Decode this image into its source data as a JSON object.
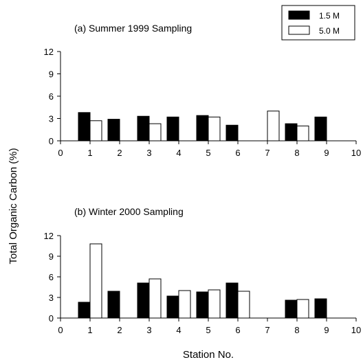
{
  "chart_data": [
    {
      "type": "bar",
      "title": "(a) Summer 1999 Sampling",
      "x": [
        1,
        2,
        3,
        4,
        5,
        6,
        7,
        8,
        9
      ],
      "xlim": [
        0,
        10
      ],
      "xticks": [
        "0",
        "1",
        "2",
        "3",
        "4",
        "5",
        "6",
        "7",
        "8",
        "9",
        "10"
      ],
      "ylim": [
        0,
        12
      ],
      "yticks": [
        "0",
        "3",
        "6",
        "9",
        "12"
      ],
      "series": [
        {
          "name": "1.5 M",
          "color": "#000000",
          "values": [
            3.8,
            2.9,
            3.3,
            3.2,
            3.4,
            2.1,
            null,
            2.3,
            3.2
          ]
        },
        {
          "name": "5.0 M",
          "color": "#ffffff",
          "values": [
            2.7,
            null,
            2.3,
            null,
            3.2,
            null,
            4.0,
            2.0,
            null
          ]
        }
      ]
    },
    {
      "type": "bar",
      "title": "(b) Winter 2000 Sampling",
      "x": [
        1,
        2,
        3,
        4,
        5,
        6,
        7,
        8,
        9
      ],
      "xlim": [
        0,
        10
      ],
      "xticks": [
        "0",
        "1",
        "2",
        "3",
        "4",
        "5",
        "6",
        "7",
        "8",
        "9",
        "10"
      ],
      "ylim": [
        0,
        12
      ],
      "yticks": [
        "0",
        "3",
        "6",
        "9",
        "12"
      ],
      "series": [
        {
          "name": "1.5 M",
          "color": "#000000",
          "values": [
            2.3,
            3.9,
            5.1,
            3.2,
            3.8,
            5.1,
            null,
            2.6,
            2.8
          ]
        },
        {
          "name": "5.0 M",
          "color": "#ffffff",
          "values": [
            10.8,
            null,
            5.7,
            4.0,
            4.1,
            3.9,
            null,
            2.7,
            null
          ]
        }
      ]
    }
  ],
  "shared": {
    "ylabel": "Total Organic Carbon (%)",
    "xlabel": "Station No.",
    "legend": {
      "placement": "top-right",
      "entries": [
        "1.5 M",
        "5.0 M"
      ]
    }
  }
}
